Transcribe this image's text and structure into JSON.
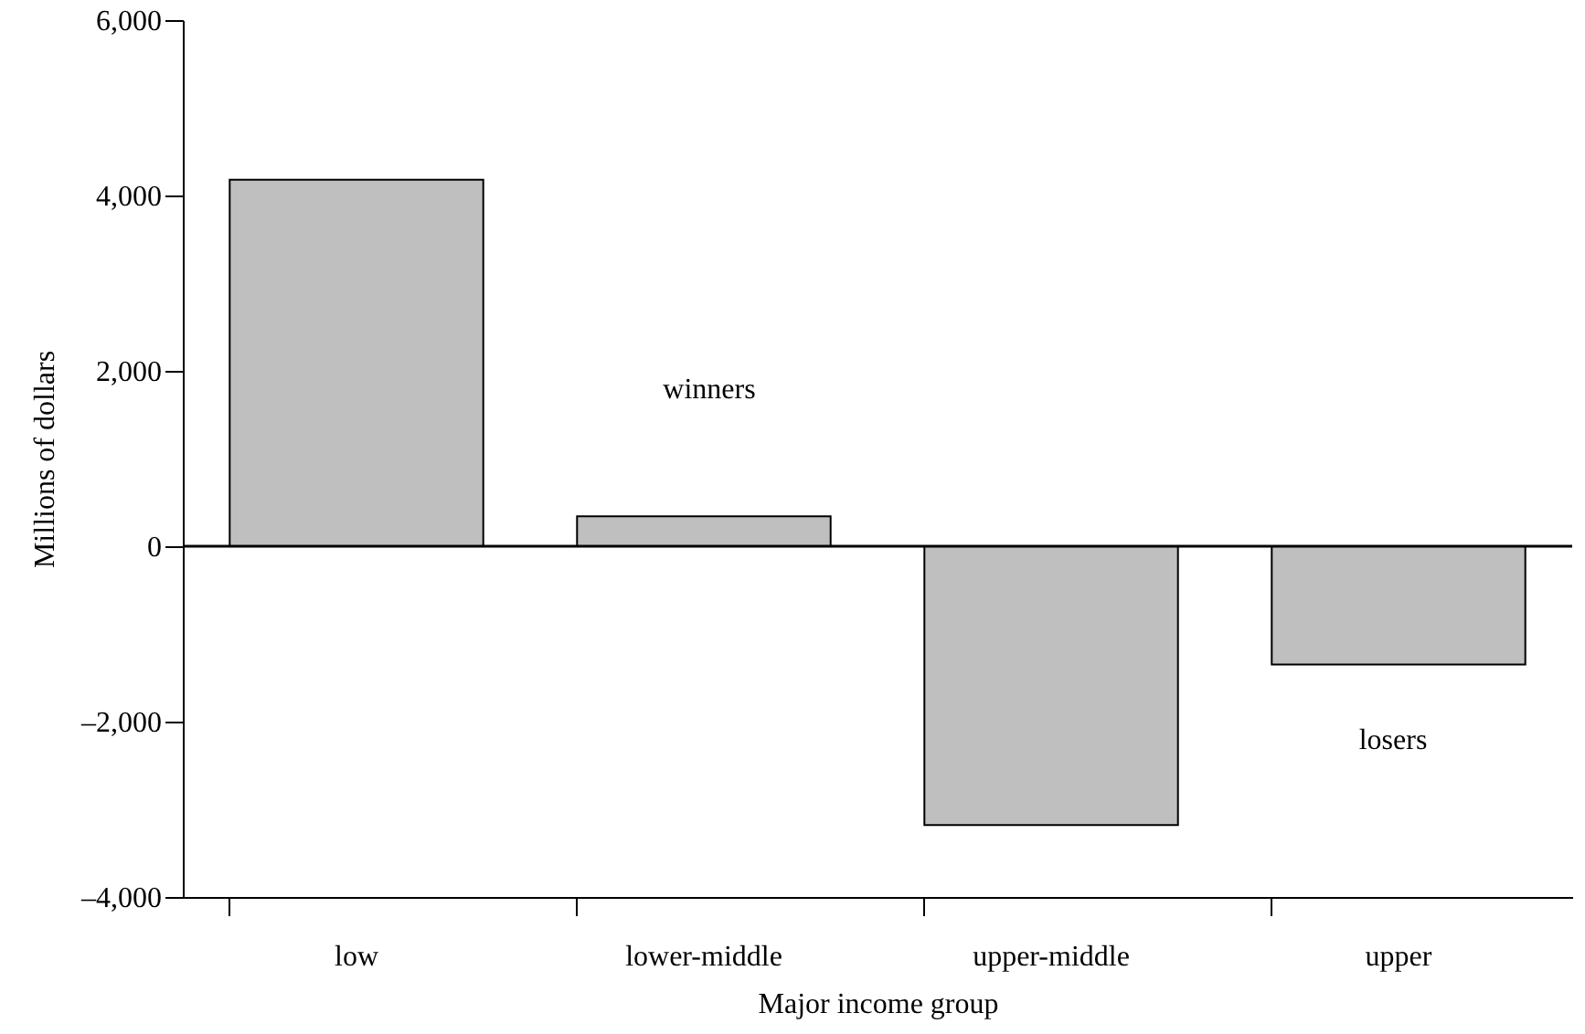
{
  "chart_data": {
    "type": "bar",
    "xlabel": "Major income group",
    "ylabel": "Millions of dollars",
    "categories": [
      "low",
      "lower-middle",
      "upper-middle",
      "upper"
    ],
    "values": [
      4180,
      340,
      -3180,
      -1350
    ],
    "color": "#bfbfbf",
    "ylim": [
      -4000,
      6000
    ],
    "yticks": [
      {
        "value": -4000,
        "label": "–4,000"
      },
      {
        "value": -2000,
        "label": "–2,000"
      },
      {
        "value": 0,
        "label": "0"
      },
      {
        "value": 2000,
        "label": "2,000"
      },
      {
        "value": 4000,
        "label": "4,000"
      },
      {
        "value": 6000,
        "label": "6,000"
      }
    ],
    "ref_lines": [
      {
        "axis": "y",
        "value": 0
      }
    ],
    "annotations": [
      "winners",
      "losers"
    ],
    "grid": false
  }
}
